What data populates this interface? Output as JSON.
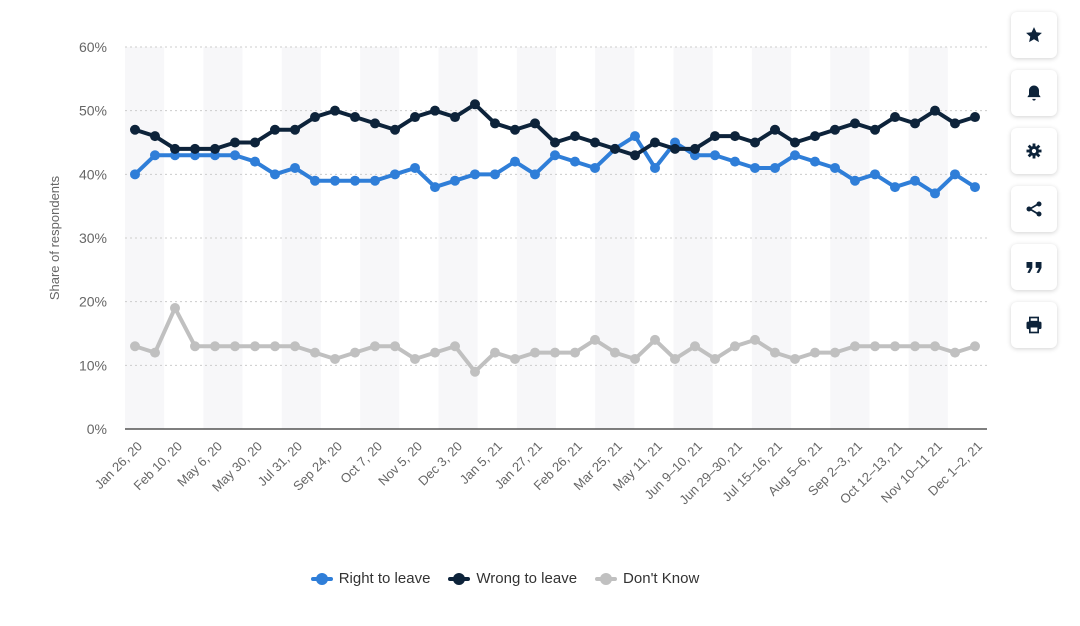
{
  "chart_data": {
    "type": "line",
    "title": "",
    "xlabel": "",
    "ylabel": "Share of respondents",
    "ylim": [
      0,
      60
    ],
    "yticks": [
      "0%",
      "10%",
      "20%",
      "30%",
      "40%",
      "50%",
      "60%"
    ],
    "x_tick_labels": [
      "Jan 26, 20",
      "Feb 10, 20",
      "May 6, 20",
      "May 30, 20",
      "Jul 31, 20",
      "Sep 24, 20",
      "Oct 7, 20",
      "Nov 5, 20",
      "Dec 3, 20",
      "Jan 5, 21",
      "Jan 27, 21",
      "Feb 26, 21",
      "Mar 25, 21",
      "May 11, 21",
      "Jun 9–10, 21",
      "Jun 29–30, 21",
      "Jul 15–16, 21",
      "Aug 5–6, 21",
      "Sep 2–3, 21",
      "Oct 12–13, 21",
      "Nov 10–11 21",
      "Dec 1–2, 21"
    ],
    "n_points": 43,
    "legend_position": "bottom",
    "series": [
      {
        "name": "Right to leave",
        "color": "#2f7ed8",
        "values": [
          40,
          43,
          43,
          43,
          43,
          43,
          42,
          40,
          41,
          39,
          39,
          39,
          39,
          40,
          41,
          38,
          39,
          40,
          40,
          42,
          40,
          43,
          42,
          41,
          44,
          46,
          41,
          45,
          43,
          43,
          42,
          41,
          41,
          43,
          42,
          41,
          39,
          40,
          38,
          39,
          37,
          40,
          38
        ]
      },
      {
        "name": "Wrong to leave",
        "color": "#0d233a",
        "values": [
          47,
          46,
          44,
          44,
          44,
          45,
          45,
          47,
          47,
          49,
          50,
          49,
          48,
          47,
          49,
          50,
          49,
          51,
          48,
          47,
          48,
          45,
          46,
          45,
          44,
          43,
          45,
          44,
          44,
          46,
          46,
          45,
          47,
          45,
          46,
          47,
          48,
          47,
          49,
          48,
          50,
          48,
          49
        ]
      },
      {
        "name": "Don't Know",
        "color": "#c0c0c0",
        "values": [
          13,
          12,
          19,
          13,
          13,
          13,
          13,
          13,
          13,
          12,
          11,
          12,
          13,
          13,
          11,
          12,
          13,
          9,
          12,
          11,
          12,
          12,
          12,
          14,
          12,
          11,
          14,
          11,
          13,
          11,
          13,
          14,
          12,
          11,
          12,
          12,
          13,
          13,
          13,
          13,
          13,
          12,
          13
        ]
      }
    ]
  },
  "toolbar": {
    "buttons": [
      {
        "name": "favorite",
        "icon": "star-icon"
      },
      {
        "name": "notify",
        "icon": "bell-icon"
      },
      {
        "name": "settings",
        "icon": "gear-icon"
      },
      {
        "name": "share",
        "icon": "share-icon"
      },
      {
        "name": "cite",
        "icon": "quote-icon"
      },
      {
        "name": "print",
        "icon": "print-icon"
      }
    ]
  }
}
